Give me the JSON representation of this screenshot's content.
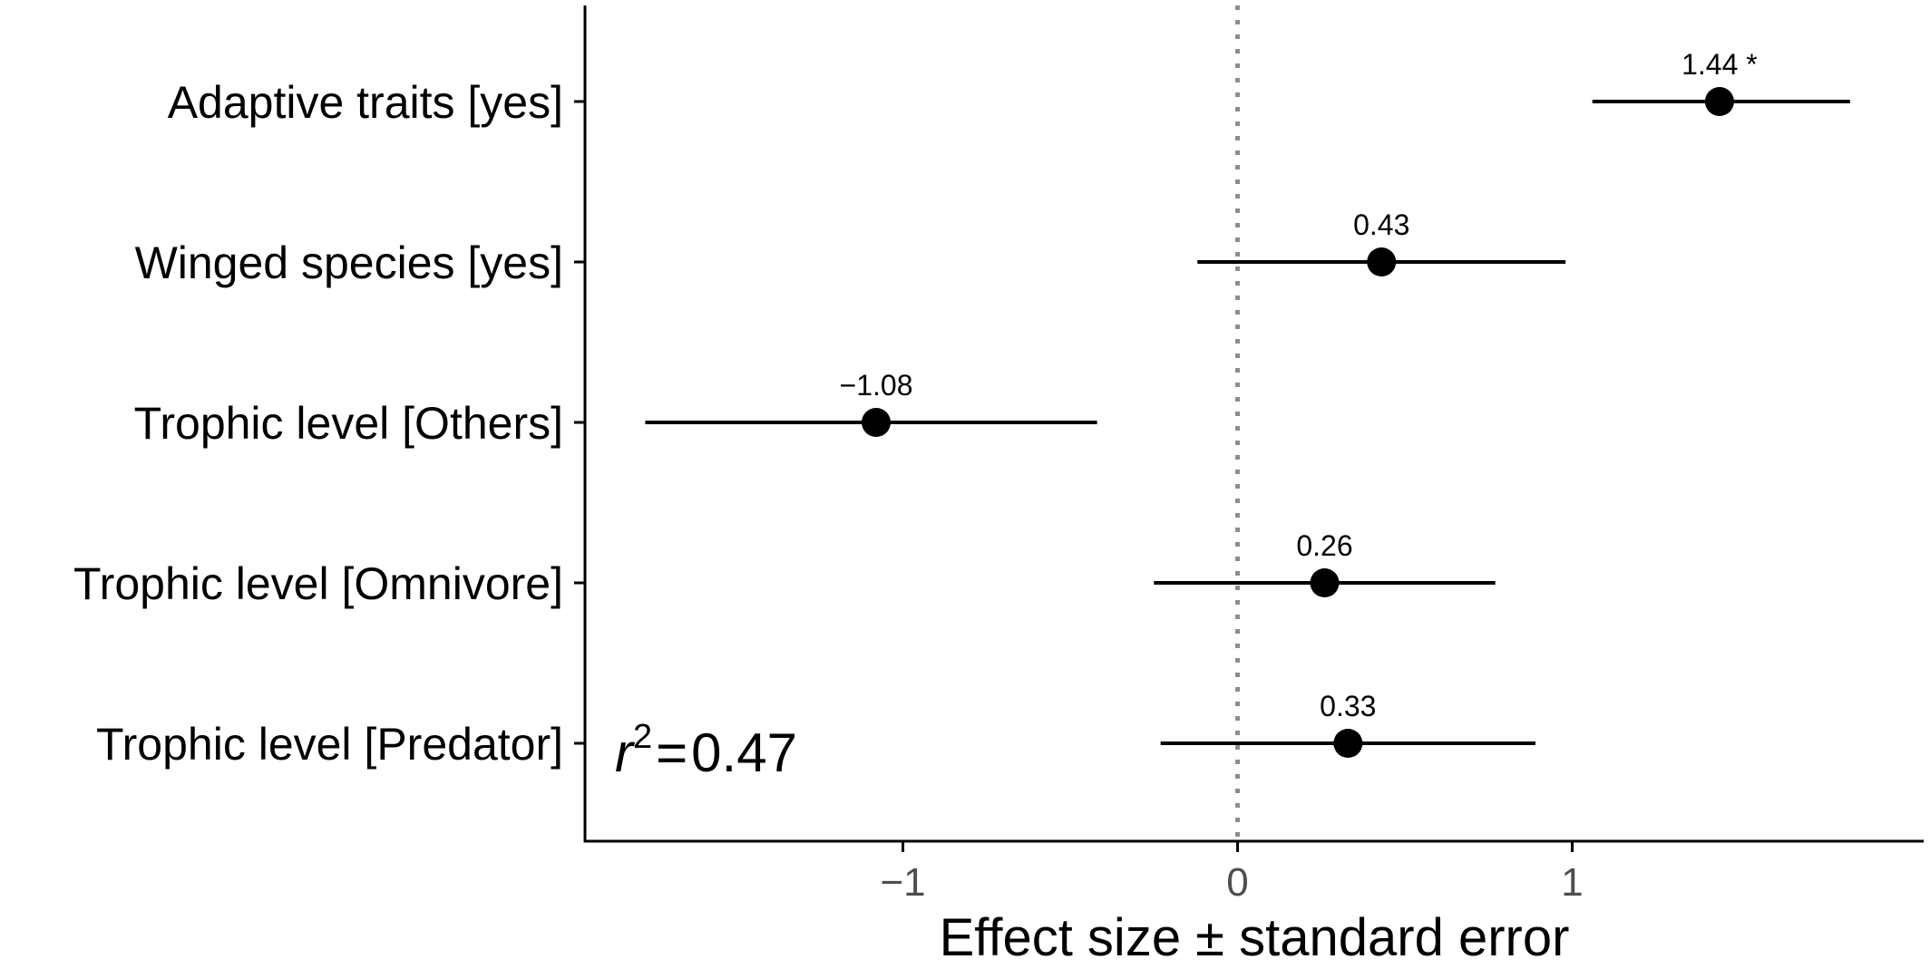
{
  "chart_data": {
    "type": "scatter",
    "title": "",
    "xlabel": "Effect size ± standard error",
    "ylabel": "",
    "xlim": [
      -1.95,
      2.05
    ],
    "x_ticks": [
      {
        "value": -1,
        "label": "−1"
      },
      {
        "value": 0,
        "label": "0"
      },
      {
        "value": 1,
        "label": "1"
      }
    ],
    "reference_line": {
      "x": 0,
      "style": "dotted",
      "color": "#8c8c8c"
    },
    "grid": false,
    "legend": "none",
    "series": [
      {
        "points": [
          {
            "category": "Adaptive traits [yes]",
            "estimate": 1.44,
            "lower": 1.06,
            "upper": 1.83,
            "label": "1.44 *"
          },
          {
            "category": "Winged species [yes]",
            "estimate": 0.43,
            "lower": -0.12,
            "upper": 0.98,
            "label": "0.43"
          },
          {
            "category": "Trophic level [Others]",
            "estimate": -1.08,
            "lower": -1.77,
            "upper": -0.42,
            "label": "−1.08"
          },
          {
            "category": "Trophic level [Omnivore]",
            "estimate": 0.26,
            "lower": -0.25,
            "upper": 0.77,
            "label": "0.26"
          },
          {
            "category": "Trophic level [Predator]",
            "estimate": 0.33,
            "lower": -0.23,
            "upper": 0.89,
            "label": "0.33"
          }
        ]
      }
    ],
    "annotation": {
      "r_symbol": "r",
      "exponent": "2",
      "equals": "=",
      "value": "0.47"
    },
    "colors": {
      "points": "#000000",
      "axis": "#000000",
      "ticks_text": "#4d4d4d",
      "reference": "#8c8c8c"
    }
  }
}
